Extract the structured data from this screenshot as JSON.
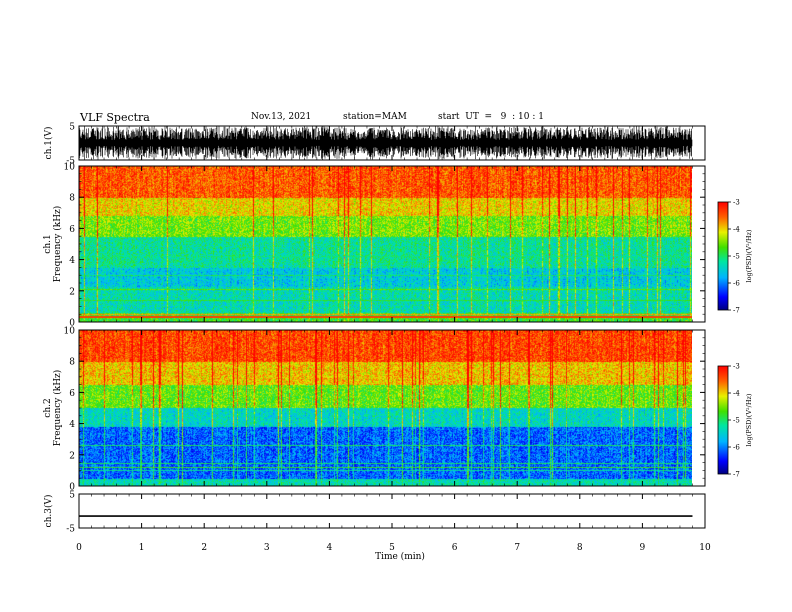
{
  "header": {
    "title": "VLF Spectra",
    "date": "Nov.13, 2021",
    "station": "station=MAM",
    "start": "start  UT  =   9  : 10 : 1"
  },
  "chart_data": [
    {
      "type": "line",
      "panel": "ch1-waveform",
      "ylabel": "ch.1(V)",
      "ylim": [
        -5,
        5
      ],
      "yticks": [
        "5",
        "-5"
      ],
      "xlim": [
        0,
        10
      ],
      "trace": "dense broadband noise, amplitude reaching about ±5 V over 0–9.8 min"
    },
    {
      "type": "heatmap",
      "panel": "ch1-spectrogram",
      "ylabel": "ch.1",
      "ylabel2": "Frequency (kHz)",
      "ylim": [
        0,
        10
      ],
      "yticks": [
        "0",
        "2",
        "4",
        "6",
        "8",
        "10"
      ],
      "xlim": [
        0,
        10
      ],
      "data_extent_min": 9.8,
      "colorbar": {
        "label": "log(PSD)(V²/Hz)",
        "range": [
          -7,
          -3
        ],
        "ticks": [
          "-3",
          "-4",
          "-5",
          "-6",
          "-7"
        ]
      },
      "description_lines_khz": [
        0.3,
        0.5,
        1.4,
        2.1
      ]
    },
    {
      "type": "heatmap",
      "panel": "ch2-spectrogram",
      "ylabel": "ch.2",
      "ylabel2": "Frequency (kHz)",
      "ylim": [
        0,
        10
      ],
      "yticks": [
        "0",
        "2",
        "4",
        "6",
        "8",
        "10"
      ],
      "xlim": [
        0,
        10
      ],
      "data_extent_min": 9.8,
      "colorbar": {
        "label": "log(PSD)(V²/Hz)",
        "range": [
          -7,
          -3
        ],
        "ticks": [
          "-3",
          "-4",
          "-5",
          "-6",
          "-7"
        ]
      }
    },
    {
      "type": "line",
      "panel": "ch3-waveform",
      "ylabel": "ch.3(V)",
      "ylim": [
        -5,
        5
      ],
      "yticks": [
        "5",
        "-5"
      ],
      "xlim": [
        0,
        10
      ],
      "x": [
        0,
        9.8
      ],
      "y": [
        -1.5,
        -1.5
      ]
    }
  ],
  "xaxis": {
    "label": "Time  (min)",
    "ticks": [
      "0",
      "1",
      "2",
      "3",
      "4",
      "5",
      "6",
      "7",
      "8",
      "9",
      "10"
    ]
  }
}
